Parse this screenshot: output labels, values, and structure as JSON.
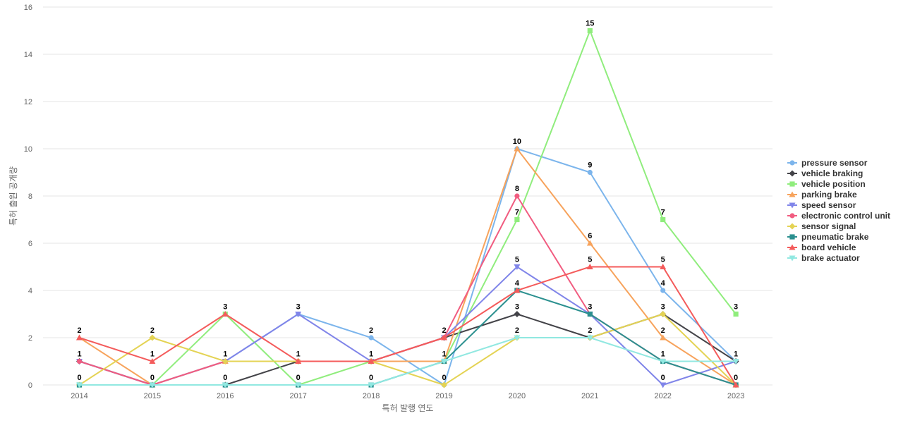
{
  "chart_data": {
    "type": "line",
    "title": "",
    "xlabel": "특허 발행 연도",
    "ylabel": "특허 출원 공개량",
    "x": [
      "2014",
      "2015",
      "2016",
      "2017",
      "2018",
      "2019",
      "2020",
      "2021",
      "2022",
      "2023"
    ],
    "ylim": [
      0,
      16
    ],
    "yticks": [
      0,
      2,
      4,
      6,
      8,
      10,
      12,
      14,
      16
    ],
    "grid": true,
    "legend_position": "right",
    "series": [
      {
        "name": "pressure sensor",
        "color": "#7cb5ec",
        "marker": "circle",
        "values": [
          1,
          0,
          1,
          3,
          2,
          0,
          10,
          9,
          4,
          1
        ]
      },
      {
        "name": "vehicle braking",
        "color": "#434348",
        "marker": "diamond",
        "values": [
          1,
          0,
          0,
          1,
          1,
          2,
          3,
          2,
          3,
          1
        ]
      },
      {
        "name": "vehicle position",
        "color": "#90ed7d",
        "marker": "square",
        "values": [
          0,
          0,
          3,
          0,
          1,
          1,
          7,
          15,
          7,
          3
        ]
      },
      {
        "name": "parking brake",
        "color": "#f7a35c",
        "marker": "triangle",
        "values": [
          2,
          0,
          1,
          1,
          1,
          1,
          10,
          6,
          2,
          0
        ]
      },
      {
        "name": "speed sensor",
        "color": "#8085e9",
        "marker": "triangle-down",
        "values": [
          1,
          0,
          1,
          3,
          1,
          2,
          5,
          3,
          0,
          1
        ]
      },
      {
        "name": "electronic control unit",
        "color": "#f15c80",
        "marker": "circle",
        "values": [
          1,
          0,
          1,
          1,
          1,
          2,
          8,
          3,
          1,
          0
        ]
      },
      {
        "name": "sensor signal",
        "color": "#e4d354",
        "marker": "diamond",
        "values": [
          0,
          2,
          1,
          1,
          1,
          0,
          2,
          2,
          3,
          0
        ]
      },
      {
        "name": "pneumatic brake",
        "color": "#2b908f",
        "marker": "square",
        "values": [
          0,
          0,
          0,
          0,
          0,
          1,
          4,
          3,
          1,
          0
        ]
      },
      {
        "name": "board vehicle",
        "color": "#f45b5b",
        "marker": "triangle",
        "values": [
          2,
          1,
          3,
          1,
          1,
          2,
          4,
          5,
          5,
          0
        ]
      },
      {
        "name": "brake actuator",
        "color": "#91e8e1",
        "marker": "triangle-down",
        "values": [
          0,
          0,
          0,
          0,
          0,
          1,
          2,
          2,
          1,
          1
        ]
      }
    ],
    "data_labels": [
      {
        "x": "2014",
        "value": 2
      },
      {
        "x": "2014",
        "value": 1
      },
      {
        "x": "2014",
        "value": 0
      },
      {
        "x": "2015",
        "value": 2
      },
      {
        "x": "2015",
        "value": 1
      },
      {
        "x": "2015",
        "value": 0
      },
      {
        "x": "2016",
        "value": 3
      },
      {
        "x": "2016",
        "value": 1
      },
      {
        "x": "2016",
        "value": 0
      },
      {
        "x": "2017",
        "value": 3
      },
      {
        "x": "2017",
        "value": 1
      },
      {
        "x": "2017",
        "value": 0
      },
      {
        "x": "2018",
        "value": 2
      },
      {
        "x": "2018",
        "value": 1
      },
      {
        "x": "2018",
        "value": 0
      },
      {
        "x": "2019",
        "value": 2
      },
      {
        "x": "2019",
        "value": 1
      },
      {
        "x": "2019",
        "value": 0
      },
      {
        "x": "2020",
        "value": 10
      },
      {
        "x": "2020",
        "value": 8
      },
      {
        "x": "2020",
        "value": 7
      },
      {
        "x": "2020",
        "value": 5
      },
      {
        "x": "2020",
        "value": 4
      },
      {
        "x": "2020",
        "value": 3
      },
      {
        "x": "2020",
        "value": 2
      },
      {
        "x": "2021",
        "value": 15
      },
      {
        "x": "2021",
        "value": 9
      },
      {
        "x": "2021",
        "value": 6
      },
      {
        "x": "2021",
        "value": 5
      },
      {
        "x": "2021",
        "value": 3
      },
      {
        "x": "2021",
        "value": 2
      },
      {
        "x": "2022",
        "value": 7
      },
      {
        "x": "2022",
        "value": 5
      },
      {
        "x": "2022",
        "value": 4
      },
      {
        "x": "2022",
        "value": 3
      },
      {
        "x": "2022",
        "value": 2
      },
      {
        "x": "2022",
        "value": 1
      },
      {
        "x": "2022",
        "value": 0
      },
      {
        "x": "2023",
        "value": 3
      },
      {
        "x": "2023",
        "value": 1
      },
      {
        "x": "2023",
        "value": 0
      }
    ]
  }
}
